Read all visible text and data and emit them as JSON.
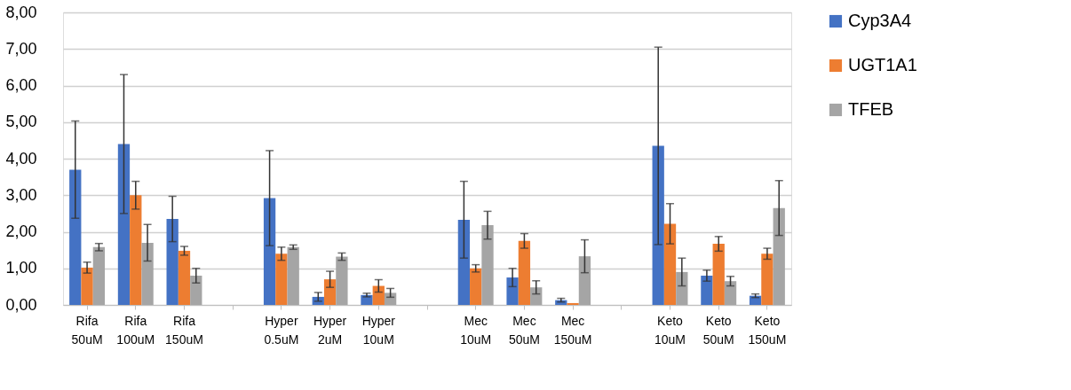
{
  "chart_data": {
    "type": "bar",
    "categories": [
      "Rifa 50uM",
      "Rifa 100uM",
      "Rifa 150uM",
      null,
      "Hyper 0.5uM",
      "Hyper 2uM",
      "Hyper 10uM",
      null,
      "Mec 10uM",
      "Mec 50uM",
      "Mec 150uM",
      null,
      "Keto 10uM",
      "Keto 50uM",
      "Keto 150uM"
    ],
    "series": [
      {
        "name": "Cyp3A4",
        "color": "#4472c4",
        "values": [
          3.7,
          4.4,
          2.35,
          null,
          2.92,
          0.22,
          0.27,
          null,
          2.33,
          0.75,
          0.13,
          null,
          4.35,
          0.8,
          0.25
        ],
        "errors": [
          1.33,
          1.9,
          0.62,
          null,
          1.3,
          0.12,
          0.05,
          null,
          1.05,
          0.25,
          0.05,
          null,
          2.7,
          0.15,
          0.05
        ]
      },
      {
        "name": "UGT1A1",
        "color": "#ed7d31",
        "values": [
          1.02,
          3.0,
          1.48,
          null,
          1.4,
          0.7,
          0.52,
          null,
          1.0,
          1.75,
          0.05,
          null,
          2.22,
          1.67,
          1.4
        ],
        "errors": [
          0.15,
          0.38,
          0.12,
          null,
          0.18,
          0.22,
          0.17,
          null,
          0.1,
          0.2,
          null,
          null,
          0.55,
          0.2,
          0.15
        ]
      },
      {
        "name": "TFEB",
        "color": "#a5a5a5",
        "values": [
          1.58,
          1.7,
          0.8,
          null,
          1.58,
          1.32,
          0.33,
          null,
          2.18,
          0.48,
          1.33,
          null,
          0.9,
          0.65,
          2.65
        ],
        "errors": [
          0.1,
          0.5,
          0.2,
          null,
          0.06,
          0.1,
          0.12,
          null,
          0.38,
          0.18,
          0.45,
          null,
          0.38,
          0.13,
          0.75
        ]
      }
    ],
    "ylim": [
      0,
      8
    ],
    "yticks": [
      {
        "value": 0,
        "label": "0,00"
      },
      {
        "value": 1,
        "label": "1,00"
      },
      {
        "value": 2,
        "label": "2,00"
      },
      {
        "value": 3,
        "label": "3,00"
      },
      {
        "value": 4,
        "label": "4,00"
      },
      {
        "value": 5,
        "label": "5,00"
      },
      {
        "value": 6,
        "label": "6,00"
      },
      {
        "value": 7,
        "label": "7,00"
      },
      {
        "value": 8,
        "label": "8,00"
      }
    ],
    "grid": "y",
    "legend": "right"
  }
}
